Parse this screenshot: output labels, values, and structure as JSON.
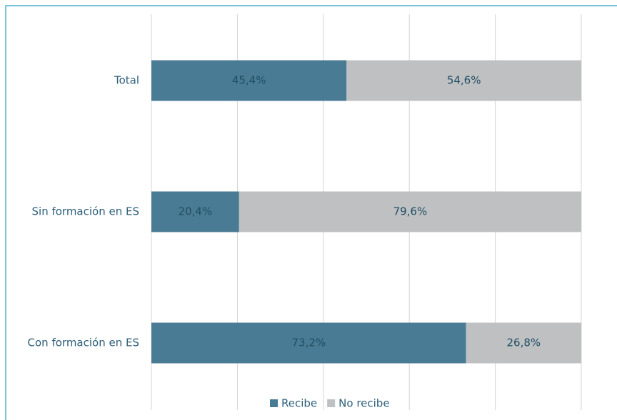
{
  "chart_data": {
    "type": "stacked_bar_horizontal",
    "categories": [
      "Total",
      "Sin formación en ES",
      "Con formación en ES"
    ],
    "series": [
      {
        "name": "Recibe",
        "color": "#4a7b94",
        "values": [
          45.4,
          20.4,
          73.2
        ],
        "value_labels": [
          "45,4%",
          "20,4%",
          "73,2%"
        ]
      },
      {
        "name": "No recibe",
        "color": "#bfc0c2",
        "values": [
          54.6,
          79.6,
          26.8
        ],
        "value_labels": [
          "54,6%",
          "79,6%",
          "26,8%"
        ]
      }
    ],
    "xlim": [
      0,
      100
    ],
    "xticks": [
      0,
      20,
      40,
      60,
      80,
      100
    ],
    "grid": true,
    "legend": "bottom"
  }
}
